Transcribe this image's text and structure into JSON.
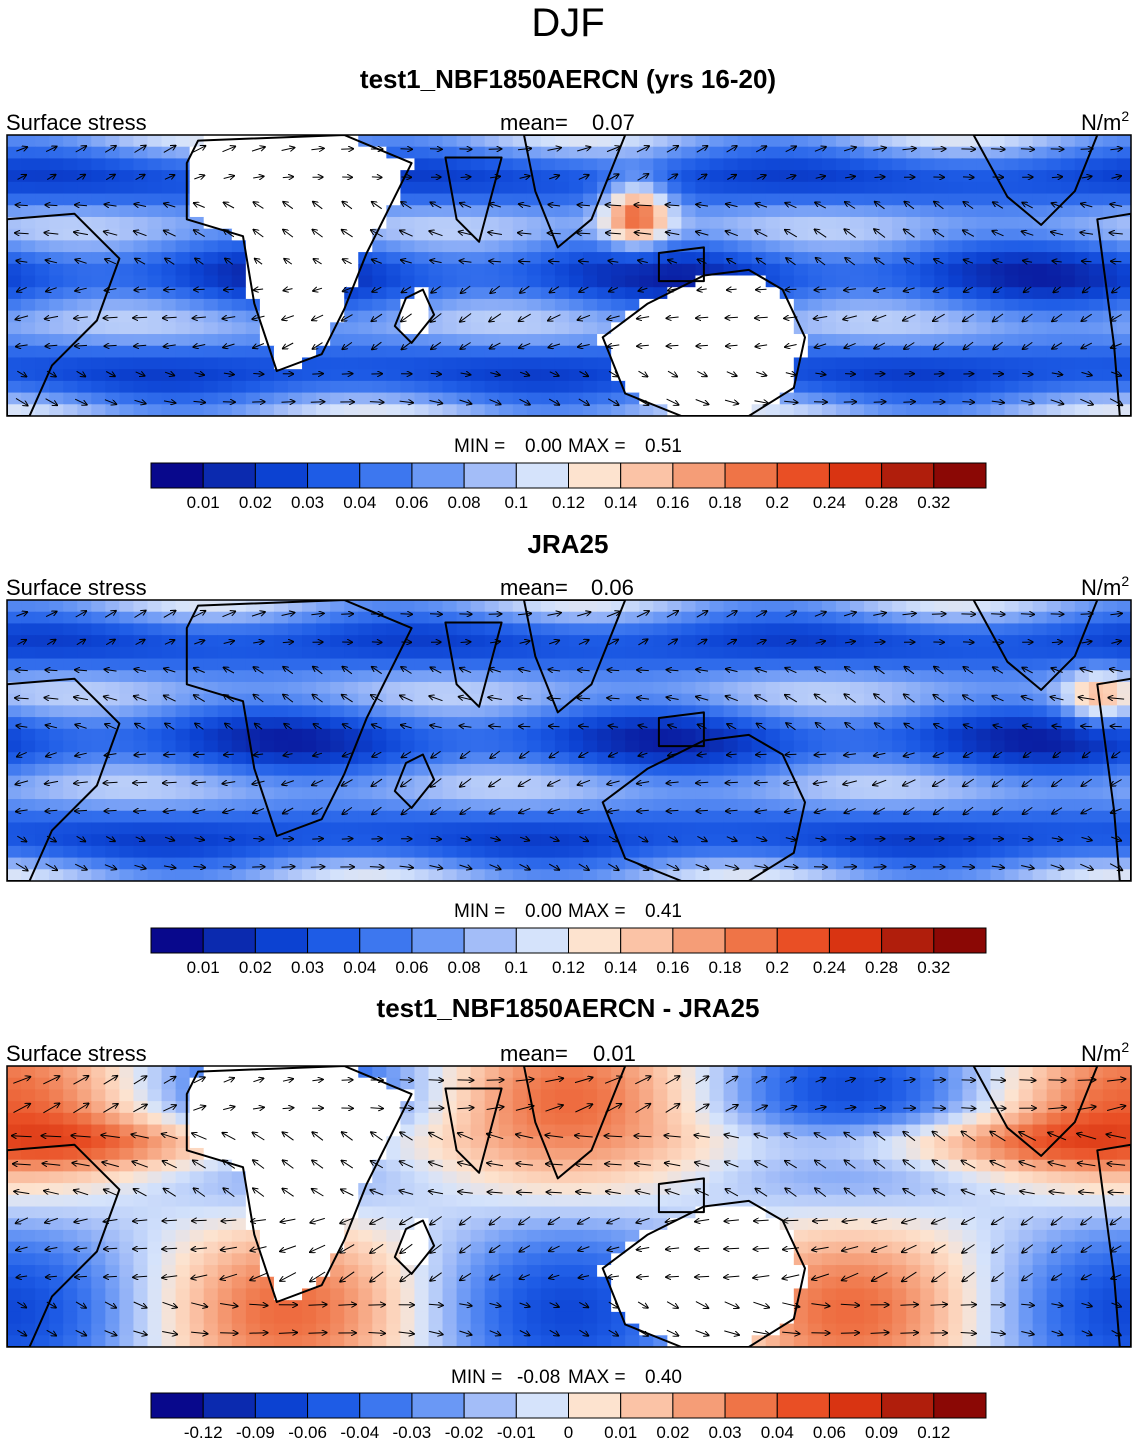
{
  "figure_title": "DJF",
  "chart_data": [
    {
      "type": "heatmap",
      "title": "test1_NBF1850AERCN (yrs 16-20)",
      "left_label": "Surface stress",
      "mean_label": "mean=",
      "mean_value": "0.07",
      "units_base": "N/m",
      "units_exp": "2",
      "stats": {
        "min_label": "MIN =",
        "min": "0.00",
        "max_label": "MAX =",
        "max": "0.51"
      },
      "colorbar": {
        "colors": [
          "#08088c",
          "#0b2aaf",
          "#0c42d2",
          "#1e5ce6",
          "#3d77ef",
          "#6a98f5",
          "#a3bdf8",
          "#d5e3fb",
          "#fde3cf",
          "#fbc3a6",
          "#f59d77",
          "#ef7447",
          "#e94f25",
          "#d93412",
          "#b01e0c",
          "#8b0805"
        ],
        "ticks": [
          "0.01",
          "0.02",
          "0.03",
          "0.04",
          "0.06",
          "0.08",
          "0.1",
          "0.12",
          "0.14",
          "0.16",
          "0.18",
          "0.2",
          "0.24",
          "0.28",
          "0.32"
        ]
      }
    },
    {
      "type": "heatmap",
      "title": "JRA25",
      "left_label": "Surface stress",
      "mean_label": "mean=",
      "mean_value": "0.06",
      "units_base": "N/m",
      "units_exp": "2",
      "stats": {
        "min_label": "MIN =",
        "min": "0.00",
        "max_label": "MAX =",
        "max": "0.41"
      },
      "colorbar": {
        "colors": [
          "#08088c",
          "#0b2aaf",
          "#0c42d2",
          "#1e5ce6",
          "#3d77ef",
          "#6a98f5",
          "#a3bdf8",
          "#d5e3fb",
          "#fde3cf",
          "#fbc3a6",
          "#f59d77",
          "#ef7447",
          "#e94f25",
          "#d93412",
          "#b01e0c",
          "#8b0805"
        ],
        "ticks": [
          "0.01",
          "0.02",
          "0.03",
          "0.04",
          "0.06",
          "0.08",
          "0.1",
          "0.12",
          "0.14",
          "0.16",
          "0.18",
          "0.2",
          "0.24",
          "0.28",
          "0.32"
        ]
      }
    },
    {
      "type": "heatmap",
      "title": "test1_NBF1850AERCN - JRA25",
      "left_label": "Surface stress",
      "mean_label": "mean=",
      "mean_value": "0.01",
      "units_base": "N/m",
      "units_exp": "2",
      "stats": {
        "min_label": "MIN =",
        "min": "-0.08",
        "max_label": "MAX =",
        "max": "0.40"
      },
      "colorbar": {
        "colors": [
          "#08088c",
          "#0b2aaf",
          "#0c42d2",
          "#1e5ce6",
          "#3d77ef",
          "#6a98f5",
          "#a3bdf8",
          "#d5e3fb",
          "#fde3cf",
          "#fbc3a6",
          "#f59d77",
          "#ef7447",
          "#e94f25",
          "#d93412",
          "#b01e0c",
          "#8b0805"
        ],
        "ticks": [
          "-0.12",
          "-0.09",
          "-0.06",
          "-0.04",
          "-0.03",
          "-0.02",
          "-0.01",
          "0",
          "0.01",
          "0.02",
          "0.03",
          "0.04",
          "0.06",
          "0.09",
          "0.12"
        ]
      }
    }
  ]
}
